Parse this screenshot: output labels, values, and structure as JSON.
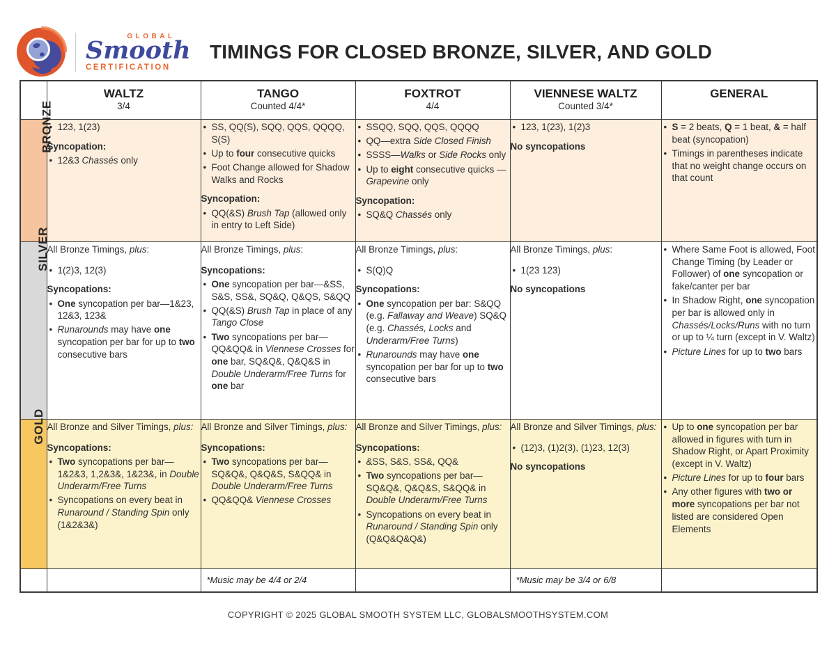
{
  "header": {
    "title": "TIMINGS FOR CLOSED BRONZE, SILVER, AND GOLD",
    "logo": {
      "top": "GLOBAL",
      "script": "Smooth",
      "bottom": "CERTIFICATION"
    }
  },
  "colors": {
    "accent_orange": "#e8662f",
    "accent_blue": "#3e4a9d",
    "border": "#3a3a3a",
    "text": "#2f2f2f",
    "bronze_label_bg": "#f6c49e",
    "bronze_cell_bg": "#fdeede",
    "silver_label_bg": "#d9d9d9",
    "silver_cell_bg": "#ffffff",
    "gold_label_bg": "#f7c860",
    "gold_cell_bg": "#fcf3cd"
  },
  "table": {
    "columns": [
      {
        "label": "WALTZ",
        "sub": "3/4"
      },
      {
        "label": "TANGO",
        "sub": "Counted 4/4*"
      },
      {
        "label": "FOXTROT",
        "sub": "4/4"
      },
      {
        "label": "VIENNESE WALTZ",
        "sub": "Counted 3/4*"
      },
      {
        "label": "GENERAL",
        "sub": ""
      }
    ],
    "rows": [
      {
        "label": "BRONZE",
        "cells": [
          [
            {
              "t": "bullet",
              "x": "123, 1(23)"
            },
            {
              "t": "heading",
              "x": "Syncopation:"
            },
            {
              "t": "bullet",
              "x": "12&3 *Chassés* only"
            }
          ],
          [
            {
              "t": "bullet",
              "x": "SS, QQ(S), SQQ, QQS, QQQQ, S(S)"
            },
            {
              "t": "bullet",
              "x": "Up to **four** consecutive quicks"
            },
            {
              "t": "bullet",
              "x": "Foot Change allowed for Shadow Walks and Rocks"
            },
            {
              "t": "heading",
              "x": "Syncopation:"
            },
            {
              "t": "bullet",
              "x": "QQ(&S) *Brush Tap* (allowed only in entry to Left Side)"
            }
          ],
          [
            {
              "t": "bullet",
              "x": "SSQQ, SQQ, QQS, QQQQ"
            },
            {
              "t": "bullet",
              "x": "QQ—extra *Side Closed Finish*"
            },
            {
              "t": "bullet",
              "x": "SSSS—*Walks* or *Side Rocks* only"
            },
            {
              "t": "bullet",
              "x": "Up to **eight** consecutive quicks — *Grapevine* only"
            },
            {
              "t": "heading",
              "x": "Syncopation:"
            },
            {
              "t": "bullet",
              "x": "SQ&Q *Chassés* only"
            }
          ],
          [
            {
              "t": "bullet",
              "x": "123, 1(23), 1(2)3"
            },
            {
              "t": "heading",
              "x": "No syncopations"
            }
          ],
          [
            {
              "t": "bullet",
              "x": "**S** = 2 beats, **Q** = 1 beat, **&** = half beat (syncopation)"
            },
            {
              "t": "bullet",
              "x": "Timings in parentheses indicate that no weight change occurs on that count"
            }
          ]
        ]
      },
      {
        "label": "SILVER",
        "cells": [
          [
            {
              "t": "plain",
              "x": "All Bronze Timings, *plus*:"
            },
            {
              "t": "bullet",
              "x": "1(2)3, 12(3)"
            },
            {
              "t": "heading",
              "x": "Syncopations:"
            },
            {
              "t": "bullet",
              "x": "**One** syncopation per bar—1&23, 12&3, 123&"
            },
            {
              "t": "bullet",
              "x": "*Runarounds* may have **one** syncopation per bar for up to **two** consecutive bars"
            }
          ],
          [
            {
              "t": "plain",
              "x": "All Bronze Timings, *plus*:"
            },
            {
              "t": "heading",
              "x": "Syncopations:"
            },
            {
              "t": "bullet",
              "x": "**One** syncopation per bar—&SS, S&S, SS&, SQ&Q, Q&QS, S&QQ"
            },
            {
              "t": "bullet",
              "x": "QQ(&S) *Brush Tap* in place of any *Tango Close*"
            },
            {
              "t": "bullet",
              "x": "**Two** syncopations per bar—QQ&QQ& in *Viennese Crosses* for **one** bar, SQ&Q&, Q&Q&S in *Double Underarm/Free Turns* for **one** bar"
            }
          ],
          [
            {
              "t": "plain",
              "x": "All Bronze Timings, *plus*:"
            },
            {
              "t": "bullet",
              "x": "S(Q)Q"
            },
            {
              "t": "heading",
              "x": "Syncopations:"
            },
            {
              "t": "bullet",
              "x": "**One** syncopation per bar: S&QQ (e.g. *Fallaway and Weave*) SQ&Q (e.g. *Chassés, Locks* and *Underarm/Free Turns*)"
            },
            {
              "t": "bullet",
              "x": "*Runarounds* may have **one** syncopation per bar for up to **two** consecutive bars"
            }
          ],
          [
            {
              "t": "plain",
              "x": "All Bronze Timings, *plus*:"
            },
            {
              "t": "bullet",
              "x": "1(23 123)"
            },
            {
              "t": "heading",
              "x": "No syncopations"
            }
          ],
          [
            {
              "t": "bullet",
              "x": "Where Same Foot is allowed, Foot Change Timing (by Leader or Follower) of **one** syncopation or fake/canter per bar"
            },
            {
              "t": "bullet",
              "x": "In Shadow Right, **one** syncopation per bar is allowed only in *Chassés/Locks/Runs* with no turn or up to ¼ turn (except in V. Waltz)"
            },
            {
              "t": "bullet",
              "x": "*Picture Lines* for up to **two** bars"
            }
          ]
        ]
      },
      {
        "label": "GOLD",
        "cells": [
          [
            {
              "t": "plain",
              "x": "All Bronze and Silver Timings, *plus:*"
            },
            {
              "t": "heading",
              "x": "Syncopations:"
            },
            {
              "t": "bullet",
              "x": "**Two** syncopations per bar—1&2&3, 1,2&3&, 1&23&, in *Double Underarm/Free Turns*"
            },
            {
              "t": "bullet",
              "x": "Syncopations on every beat in *Runaround / Standing Spin* only (1&2&3&)"
            }
          ],
          [
            {
              "t": "plain",
              "x": "All Bronze and Silver Timings, *plus:*"
            },
            {
              "t": "heading",
              "x": "Syncopations:"
            },
            {
              "t": "bullet",
              "x": "**Two** syncopations per bar—SQ&Q&, Q&Q&S, S&QQ& in *Double Underarm/Free Turns*"
            },
            {
              "t": "bullet",
              "x": "QQ&QQ& *Viennese Crosses*"
            }
          ],
          [
            {
              "t": "plain",
              "x": "All Bronze and Silver Timings, *plus:*"
            },
            {
              "t": "heading",
              "x": "Syncopations:"
            },
            {
              "t": "bullet",
              "x": "&SS, S&S, SS&, QQ&"
            },
            {
              "t": "bullet",
              "x": "**Two** syncopations per bar—SQ&Q&, Q&Q&S, S&QQ& in *Double Underarm/Free Turns*"
            },
            {
              "t": "bullet",
              "x": "Syncopations on every beat in *Runaround / Standing Spin* only (Q&Q&Q&Q&)"
            }
          ],
          [
            {
              "t": "plain",
              "x": "All Bronze and Silver Timings, *plus:*"
            },
            {
              "t": "bullet",
              "x": "(12)3, (1)2(3), (1)23, 12(3)"
            },
            {
              "t": "heading",
              "x": "No syncopations"
            }
          ],
          [
            {
              "t": "bullet",
              "x": "Up to **one** syncopation per bar allowed in figures with turn in Shadow Right, or Apart Proximity (except in V. Waltz)"
            },
            {
              "t": "bullet",
              "x": "*Picture Lines* for up to **four** bars"
            },
            {
              "t": "bullet",
              "x": "Any other figures with **two or more** syncopations per bar not listed are considered Open Elements"
            }
          ]
        ]
      }
    ],
    "footer_cells": [
      "",
      "*Music may be 4/4 or 2/4",
      "",
      "*Music may be 3/4 or 6/8",
      ""
    ]
  },
  "footer": {
    "copyright": "COPYRIGHT © 2025 GLOBAL SMOOTH SYSTEM LLC, GLOBALSMOOTHSYSTEM.COM"
  }
}
